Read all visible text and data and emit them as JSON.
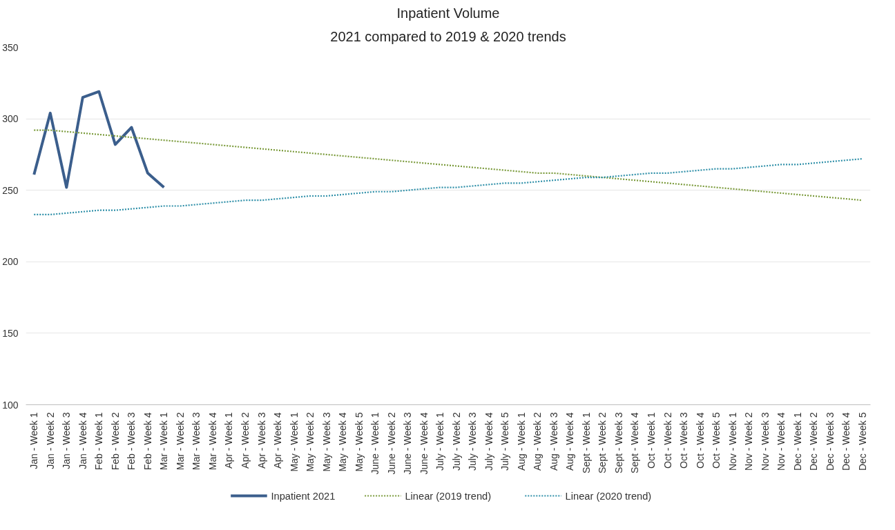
{
  "chart_data": {
    "type": "line",
    "title": "Inpatient Volume",
    "subtitle": "2021 compared to 2019 & 2020 trends",
    "categories": [
      "Jan - Week 1",
      "Jan - Week 2",
      "Jan - Week 3",
      "Jan - Week 4",
      "Feb - Week 1",
      "Feb - Week 2",
      "Feb - Week 3",
      "Feb - Week 4",
      "Mar - Week 1",
      "Mar - Week 2",
      "Mar - Week 3",
      "Mar - Week 4",
      "Apr - Week 1",
      "Apr - Week 2",
      "Apr - Week 3",
      "Apr - Week 4",
      "May - Week 1",
      "May - Week 2",
      "May - Week 3",
      "May - Week 4",
      "May - Week 5",
      "June - Week 1",
      "June - Week 2",
      "June - Week 3",
      "June - Week 4",
      "July - Week 1",
      "July - Week 2",
      "July - Week 3",
      "July - Week 4",
      "July - Week 5",
      "Aug - Week 1",
      "Aug - Week 2",
      "Aug - Week 3",
      "Aug - Week 4",
      "Sept - Week 1",
      "Sept - Week 2",
      "Sept - Week 3",
      "Sept - Week 4",
      "Oct - Week 1",
      "Oct - Week 2",
      "Oct - Week 3",
      "Oct - Week 4",
      "Oct - Week 5",
      "Nov - Week 1",
      "Nov - Week 2",
      "Nov - Week 3",
      "Nov - Week 4",
      "Dec - Week 1",
      "Dec - Week 2",
      "Dec - Week 3",
      "Dec - Week 4",
      "Dec - Week 5"
    ],
    "series": [
      {
        "name": "Inpatient 2021",
        "color": "#3b5e8c",
        "line_style": "solid",
        "values": [
          261,
          304,
          252,
          315,
          319,
          282,
          294,
          262,
          252,
          null,
          null,
          null,
          null,
          null,
          null,
          null,
          null,
          null,
          null,
          null,
          null,
          null,
          null,
          null,
          null,
          null,
          null,
          null,
          null,
          null,
          null,
          null,
          null,
          null,
          null,
          null,
          null,
          null,
          null,
          null,
          null,
          null,
          null,
          null,
          null,
          null,
          null,
          null,
          null,
          null,
          null,
          null
        ]
      },
      {
        "name": "Linear (2019 trend)",
        "color": "#7a9a3a",
        "line_style": "dotted",
        "values": [
          292,
          292,
          291,
          290,
          289,
          288,
          287,
          286,
          285,
          284,
          283,
          282,
          281,
          280,
          279,
          278,
          277,
          276,
          275,
          274,
          273,
          272,
          271,
          270,
          269,
          268,
          267,
          266,
          265,
          264,
          263,
          262,
          262,
          261,
          260,
          259,
          258,
          257,
          256,
          255,
          254,
          253,
          252,
          251,
          250,
          249,
          248,
          247,
          246,
          245,
          244,
          243
        ]
      },
      {
        "name": "Linear (2020 trend)",
        "color": "#2e8fa8",
        "line_style": "dotted",
        "values": [
          233,
          233,
          234,
          235,
          236,
          236,
          237,
          238,
          239,
          239,
          240,
          241,
          242,
          243,
          243,
          244,
          245,
          246,
          246,
          247,
          248,
          249,
          249,
          250,
          251,
          252,
          252,
          253,
          254,
          255,
          255,
          256,
          257,
          258,
          259,
          259,
          260,
          261,
          262,
          262,
          263,
          264,
          265,
          265,
          266,
          267,
          268,
          268,
          269,
          270,
          271,
          272
        ]
      }
    ],
    "ylim": [
      100,
      350
    ],
    "yticks": [
      100,
      150,
      200,
      250,
      300,
      350
    ],
    "grid": "y",
    "legend": "bottom"
  }
}
